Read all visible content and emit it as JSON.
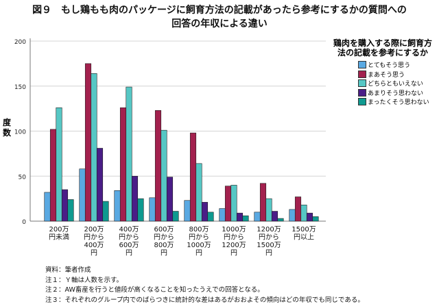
{
  "title_line1": "図９　もし鶏もも肉のパッケージに飼育方法の記載があったら参考にするかの質問への",
  "title_line2": "回答の年収による違い",
  "chart_data": {
    "type": "bar",
    "ylabel": "度数",
    "ylim": [
      0,
      200
    ],
    "yticks": [
      0,
      50,
      100,
      150,
      200
    ],
    "grid": true,
    "legend_title": "鶏肉を購入する際に飼育方法の記載を参考にするか",
    "legend_title_lines": [
      "鶏肉を購入する際に飼育方",
      "法の記載を参考にするか"
    ],
    "legend_placement": "right",
    "categories": [
      [
        "200万",
        "円未満"
      ],
      [
        "200万",
        "円から",
        "400万",
        "円"
      ],
      [
        "400万",
        "円から",
        "600万",
        "円"
      ],
      [
        "600万",
        "円から",
        "800万",
        "円"
      ],
      [
        "800万",
        "円から",
        "1000万",
        "円"
      ],
      [
        "1000万",
        "円から",
        "1200万",
        "円"
      ],
      [
        "1200万",
        "円から",
        "1500万",
        "円"
      ],
      [
        "1500万",
        "円以上"
      ]
    ],
    "series": [
      {
        "name": "とてもそう思う",
        "color": "#5aa9e2",
        "values": [
          32,
          58,
          34,
          26,
          23,
          14,
          10,
          13
        ]
      },
      {
        "name": "まあそう思う",
        "color": "#a3214e",
        "values": [
          102,
          175,
          126,
          123,
          98,
          39,
          42,
          27
        ]
      },
      {
        "name": "どちらともいえない",
        "color": "#56c7c4",
        "values": [
          126,
          164,
          149,
          101,
          64,
          40,
          25,
          18
        ]
      },
      {
        "name": "あまりそう思わない",
        "color": "#4a1d87",
        "values": [
          35,
          81,
          50,
          49,
          21,
          9,
          11,
          9
        ]
      },
      {
        "name": "まったくそう思わない",
        "color": "#0f9a90",
        "values": [
          24,
          22,
          25,
          11,
          10,
          6,
          3,
          5
        ]
      }
    ]
  },
  "notes": [
    "資料：筆者作成",
    "注１：Ｙ軸は人数を示す。",
    "注２：AW畜産を行うと値段が高くなることを知ったうえでの回答となる。",
    "注３：それぞれのグループ内でのばらつきに統計的な差はあるがおおよその傾向はどの年収でも同じである。"
  ]
}
